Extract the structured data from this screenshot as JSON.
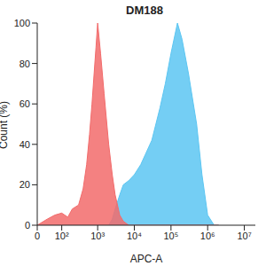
{
  "chart_data": {
    "type": "area",
    "title": "DM188",
    "x_label": "APC-A",
    "y_label": "Count (%)",
    "log": "x",
    "x": [
      0,
      30,
      60,
      100,
      150,
      200,
      300,
      400,
      500,
      600,
      700,
      800,
      900,
      1000,
      1200,
      1500,
      2000,
      2500,
      3000,
      4000,
      5000,
      7000,
      10000,
      15000,
      20000,
      30000,
      50000,
      70000,
      100000,
      150000,
      200000,
      300000,
      500000,
      700000,
      1000000,
      1500000,
      2000000
    ],
    "series": [
      {
        "color": "#5cc6f2",
        "values": [
          0,
          0,
          0,
          0,
          0,
          0,
          0,
          0,
          0,
          0,
          0,
          0,
          0,
          0,
          0,
          0,
          0,
          3,
          8,
          15,
          20,
          22,
          25,
          30,
          35,
          42,
          58,
          70,
          85,
          100,
          92,
          75,
          50,
          25,
          5,
          0,
          0
        ]
      },
      {
        "color": "#f26b6b",
        "values": [
          0,
          3,
          5,
          6,
          4,
          8,
          10,
          18,
          30,
          45,
          60,
          75,
          88,
          100,
          85,
          65,
          40,
          25,
          15,
          5,
          2,
          0,
          0,
          0,
          0,
          0,
          0,
          0,
          0,
          0,
          0,
          0,
          0,
          0,
          0,
          0,
          0
        ]
      }
    ],
    "xlim": [
      0,
      20000000
    ],
    "xticks": [
      0,
      {
        "value": 100,
        "label": "10²"
      },
      {
        "value": 1000,
        "label": "10³"
      },
      {
        "value": 10000,
        "label": "10⁴"
      },
      {
        "value": 100000,
        "label": "10⁵"
      },
      {
        "value": 1000000,
        "label": "10⁶"
      },
      {
        "value": 10000000,
        "label": "10⁷"
      }
    ],
    "ylim": [
      0,
      100
    ],
    "yticks": [
      0,
      20,
      40,
      60,
      80,
      100
    ],
    "grid": false
  }
}
